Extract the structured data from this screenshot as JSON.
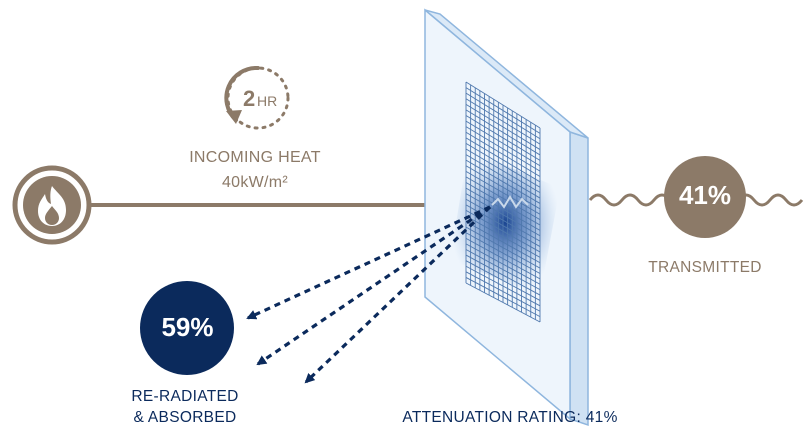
{
  "timer": {
    "value": "2",
    "unit": "HR"
  },
  "incoming_heat": {
    "label": "INCOMING HEAT",
    "value": "40kW/m²"
  },
  "transmitted": {
    "percent": "41%",
    "label": "TRANSMITTED"
  },
  "reradiated": {
    "percent": "59%",
    "label_line1": "RE-RADIATED",
    "label_line2": "& ABSORBED"
  },
  "attenuation": {
    "label": "ATTENUATION RATING: 41%"
  },
  "icons": {
    "heat_source": "flame-icon",
    "timer": "clock-timer-icon",
    "panel": "glass-panel-with-mesh",
    "transmission": "wave-icon",
    "reflection": "dashed-arrow-icon"
  },
  "colors": {
    "tan": "#8c7a68",
    "navy": "#0b2a5c",
    "panel_edge": "#8fb6de",
    "panel_fill": "#eef5fc",
    "mesh": "#4f78ad"
  }
}
